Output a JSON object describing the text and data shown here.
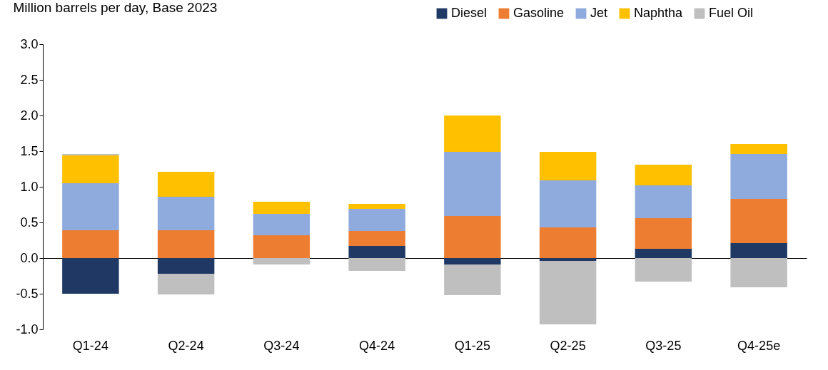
{
  "chart_data": {
    "type": "bar",
    "stacked": true,
    "ylabel": "Million barrels per day, Base 2023",
    "categories": [
      "Q1-24",
      "Q2-24",
      "Q3-24",
      "Q4-24",
      "Q1-25",
      "Q2-25",
      "Q3-25",
      "Q4-25e"
    ],
    "series": [
      {
        "name": "Diesel",
        "color": "#1f3864",
        "values": [
          -0.5,
          -0.22,
          0,
          0.17,
          -0.09,
          -0.04,
          0.13,
          0.21
        ]
      },
      {
        "name": "Gasoline",
        "color": "#ed7d31",
        "values": [
          0.39,
          0.39,
          0.32,
          0.21,
          0.59,
          0.43,
          0.43,
          0.62
        ]
      },
      {
        "name": "Jet",
        "color": "#8faadc",
        "values": [
          0.66,
          0.47,
          0.3,
          0.31,
          0.9,
          0.66,
          0.46,
          0.63
        ]
      },
      {
        "name": "Naphtha",
        "color": "#ffc000",
        "values": [
          0.39,
          0.35,
          0.17,
          0.07,
          0.51,
          0.4,
          0.29,
          0.14
        ]
      },
      {
        "name": "Fuel Oil",
        "color": "#bfbfbf",
        "values": [
          0.02,
          -0.29,
          -0.09,
          -0.18,
          -0.43,
          -0.89,
          -0.33,
          -0.41
        ]
      }
    ],
    "ylim": [
      -1.0,
      3.0
    ],
    "yticks": [
      {
        "value": -1,
        "label": "-1.0"
      },
      {
        "value": -0.5,
        "label": "-0.5"
      },
      {
        "value": 0,
        "label": "0.0"
      },
      {
        "value": 0.5,
        "label": "0.5"
      },
      {
        "value": 1,
        "label": "1.0"
      },
      {
        "value": 1.5,
        "label": "1.5"
      },
      {
        "value": 2,
        "label": "2.0"
      },
      {
        "value": 2.5,
        "label": "2.5"
      },
      {
        "value": 3,
        "label": "3.0"
      }
    ],
    "legend": "top right"
  }
}
